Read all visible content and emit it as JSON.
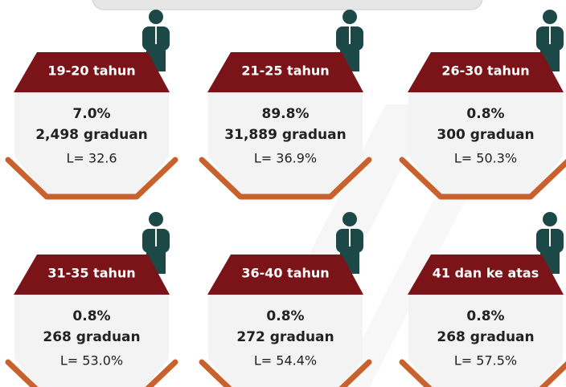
{
  "cards": [
    {
      "label": "19-20 tahun",
      "percent": "7.0%",
      "graduates": "2,498 graduan",
      "l": "L= 32.6"
    },
    {
      "label": "21-25 tahun",
      "percent": "89.8%",
      "graduates": "31,889 graduan",
      "l": "L= 36.9%"
    },
    {
      "label": "26-30 tahun",
      "percent": "0.8%",
      "graduates": "300 graduan",
      "l": "L= 50.3%"
    },
    {
      "label": "31-35 tahun",
      "percent": "0.8%",
      "graduates": "268 graduan",
      "l": "L= 53.0%"
    },
    {
      "label": "36-40 tahun",
      "percent": "0.8%",
      "graduates": "272 graduan",
      "l": "L= 54.4%"
    },
    {
      "label": "41 dan ke atas",
      "percent": "0.8%",
      "graduates": "268 graduan",
      "l": "L= 57.5%"
    }
  ]
}
